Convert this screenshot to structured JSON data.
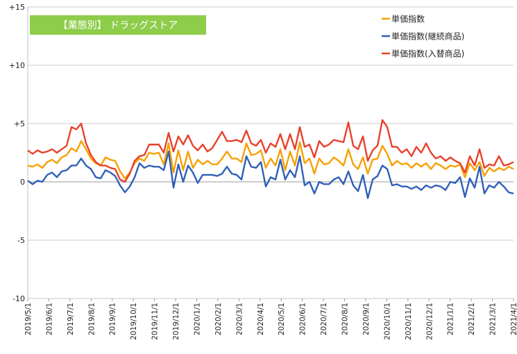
{
  "chart_data": {
    "type": "line",
    "title": "【業態別】 ドラッグストア",
    "title_bg": "#8dcd4a",
    "ylim": [
      -10,
      15
    ],
    "yticks": [
      {
        "value": 15,
        "label": "+15"
      },
      {
        "value": 10,
        "label": "+10"
      },
      {
        "value": 5,
        "label": "+5"
      },
      {
        "value": 0,
        "label": "0"
      },
      {
        "value": -5,
        "label": "-5"
      },
      {
        "value": -10,
        "label": "-10"
      }
    ],
    "grid": "horizontal",
    "legend_position": "top-right",
    "x_count": 101,
    "x_tick_labels": [
      "2019/5/1",
      "2019/6/1",
      "2019/7/1",
      "2019/8/1",
      "2019/9/1",
      "2019/10/1",
      "2019/11/1",
      "2019/12/1",
      "2020/1/1",
      "2020/2/1",
      "2020/3/1",
      "2020/4/1",
      "2020/5/1",
      "2020/6/1",
      "2020/7/1",
      "2020/8/1",
      "2020/9/1",
      "2020/10/1",
      "2020/11/1",
      "2020/12/1",
      "2021/1/1",
      "2021/2/1",
      "2021/3/1",
      "2021/4/1"
    ],
    "series": [
      {
        "name": "単価指数",
        "color": "#f5a000",
        "values": [
          1.4,
          1.3,
          1.5,
          1.2,
          1.7,
          1.9,
          1.6,
          2.1,
          2.3,
          2.9,
          2.6,
          3.5,
          2.8,
          2.0,
          1.6,
          1.4,
          2.1,
          1.9,
          1.8,
          0.9,
          0.3,
          0.8,
          1.6,
          2.0,
          1.8,
          2.5,
          2.4,
          2.5,
          1.5,
          3.3,
          0.8,
          2.7,
          1.0,
          2.6,
          1.2,
          1.9,
          1.5,
          1.8,
          1.5,
          1.5,
          2.0,
          2.6,
          2.0,
          2.0,
          1.7,
          3.3,
          2.3,
          2.4,
          2.7,
          1.2,
          2.0,
          1.4,
          2.8,
          1.0,
          2.6,
          1.4,
          3.4,
          1.6,
          2.0,
          0.7,
          2.0,
          1.5,
          1.6,
          2.1,
          1.8,
          1.4,
          2.8,
          1.5,
          1.1,
          2.1,
          0.7,
          1.9,
          2.0,
          3.1,
          2.4,
          1.4,
          1.8,
          1.5,
          1.6,
          1.2,
          1.6,
          1.3,
          1.6,
          1.1,
          1.6,
          1.4,
          1.1,
          1.4,
          1.3,
          1.5,
          0.4,
          1.6,
          1.0,
          1.7,
          0.5,
          1.2,
          0.9,
          1.2,
          1.0,
          1.3,
          1.1
        ]
      },
      {
        "name": "単価指数(継続商品)",
        "color": "#2f5fb8",
        "values": [
          0.1,
          -0.2,
          0.1,
          0.0,
          0.6,
          0.8,
          0.4,
          0.9,
          1.0,
          1.4,
          1.4,
          2.0,
          1.4,
          1.1,
          0.4,
          0.3,
          1.0,
          0.8,
          0.5,
          -0.3,
          -0.9,
          -0.4,
          0.4,
          1.6,
          1.2,
          1.4,
          1.3,
          1.3,
          1.0,
          2.6,
          -0.5,
          1.5,
          0.0,
          1.4,
          0.8,
          -0.1,
          0.6,
          0.6,
          0.6,
          0.5,
          0.7,
          1.3,
          0.7,
          0.6,
          0.2,
          2.2,
          1.3,
          1.2,
          1.7,
          -0.4,
          0.4,
          0.2,
          1.9,
          0.2,
          1.0,
          0.4,
          2.2,
          -0.3,
          0.0,
          -1.0,
          0.0,
          -0.2,
          -0.2,
          0.2,
          0.4,
          -0.2,
          0.9,
          -0.3,
          -0.8,
          0.6,
          -1.4,
          0.2,
          0.5,
          1.4,
          1.1,
          -0.3,
          -0.2,
          -0.4,
          -0.4,
          -0.6,
          -0.4,
          -0.7,
          -0.3,
          -0.5,
          -0.3,
          -0.4,
          -0.7,
          0.0,
          -0.1,
          0.4,
          -1.3,
          0.3,
          -0.5,
          1.3,
          -1.0,
          -0.3,
          -0.5,
          0.0,
          -0.4,
          -0.9,
          -1.0
        ]
      },
      {
        "name": "単価指数(入替商品)",
        "color": "#e8402a",
        "values": [
          2.7,
          2.4,
          2.7,
          2.5,
          2.6,
          2.8,
          2.5,
          2.8,
          3.1,
          4.7,
          4.5,
          5.0,
          3.3,
          2.3,
          1.7,
          1.4,
          1.4,
          1.2,
          1.1,
          0.2,
          0.0,
          0.7,
          1.8,
          2.2,
          2.3,
          3.2,
          3.2,
          3.2,
          2.5,
          4.2,
          2.6,
          3.9,
          3.2,
          4.0,
          3.1,
          2.7,
          3.2,
          2.6,
          2.9,
          3.6,
          4.3,
          3.5,
          3.5,
          3.6,
          3.4,
          4.4,
          3.3,
          3.1,
          3.6,
          2.5,
          3.3,
          3.0,
          4.1,
          2.8,
          4.1,
          2.8,
          4.7,
          3.0,
          3.2,
          2.1,
          3.5,
          3.0,
          3.2,
          3.6,
          3.5,
          3.4,
          5.1,
          3.1,
          2.8,
          3.9,
          1.8,
          2.7,
          3.1,
          5.3,
          4.7,
          3.0,
          3.0,
          2.5,
          2.8,
          2.2,
          3.0,
          2.5,
          3.3,
          2.5,
          2.0,
          2.2,
          1.8,
          2.1,
          1.8,
          1.6,
          0.8,
          2.2,
          1.4,
          2.8,
          1.2,
          1.5,
          1.4,
          2.2,
          1.4,
          1.5,
          1.7
        ]
      }
    ]
  }
}
